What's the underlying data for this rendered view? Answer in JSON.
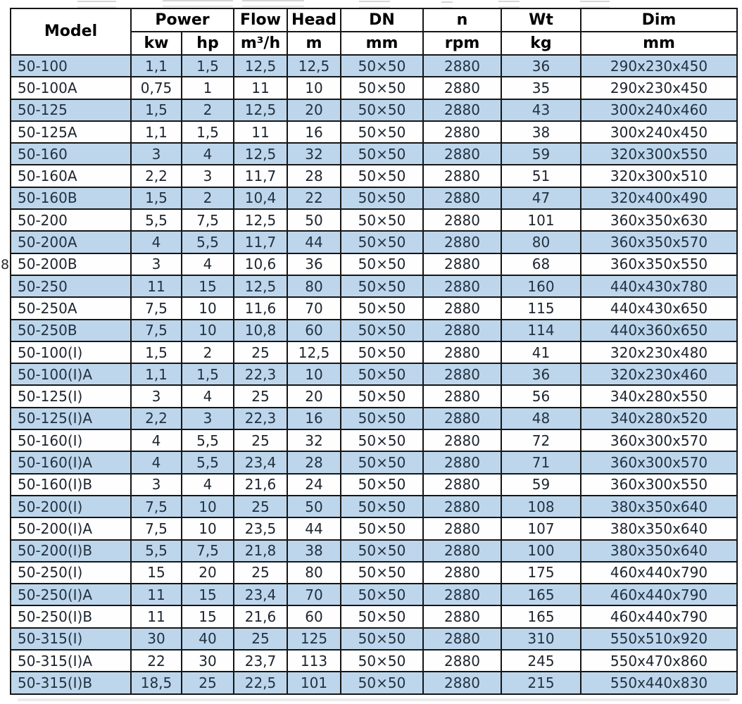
{
  "page": {
    "margin_note": "8"
  },
  "table": {
    "header": {
      "model_label": "Model",
      "groups": [
        {
          "label": "Power",
          "units": [
            "kw",
            "hp"
          ]
        },
        {
          "label": "Flow",
          "units": [
            "m³/h"
          ]
        },
        {
          "label": "Head",
          "units": [
            "m"
          ]
        },
        {
          "label": "DN",
          "units": [
            "mm"
          ]
        },
        {
          "label": "n",
          "units": [
            "rpm"
          ]
        },
        {
          "label": "Wt",
          "units": [
            "kg"
          ]
        },
        {
          "label": "Dim",
          "units": [
            "mm"
          ]
        }
      ]
    },
    "rows": [
      {
        "model": "50-100",
        "kw": "1,1",
        "hp": "1,5",
        "flow": "12,5",
        "head": "12,5",
        "dn": "50×50",
        "rpm": "2880",
        "wt": "36",
        "dim": "290x230x450"
      },
      {
        "model": "50-100A",
        "kw": "0,75",
        "hp": "1",
        "flow": "11",
        "head": "10",
        "dn": "50×50",
        "rpm": "2880",
        "wt": "35",
        "dim": "290x230x450"
      },
      {
        "model": "50-125",
        "kw": "1,5",
        "hp": "2",
        "flow": "12,5",
        "head": "20",
        "dn": "50×50",
        "rpm": "2880",
        "wt": "43",
        "dim": "300x240x460"
      },
      {
        "model": "50-125A",
        "kw": "1,1",
        "hp": "1,5",
        "flow": "11",
        "head": "16",
        "dn": "50×50",
        "rpm": "2880",
        "wt": "38",
        "dim": "300x240x450"
      },
      {
        "model": "50-160",
        "kw": "3",
        "hp": "4",
        "flow": "12,5",
        "head": "32",
        "dn": "50×50",
        "rpm": "2880",
        "wt": "59",
        "dim": "320x300x550"
      },
      {
        "model": "50-160A",
        "kw": "2,2",
        "hp": "3",
        "flow": "11,7",
        "head": "28",
        "dn": "50×50",
        "rpm": "2880",
        "wt": "51",
        "dim": "320x300x510"
      },
      {
        "model": "50-160B",
        "kw": "1,5",
        "hp": "2",
        "flow": "10,4",
        "head": "22",
        "dn": "50×50",
        "rpm": "2880",
        "wt": "47",
        "dim": "320x400x490"
      },
      {
        "model": "50-200",
        "kw": "5,5",
        "hp": "7,5",
        "flow": "12,5",
        "head": "50",
        "dn": "50×50",
        "rpm": "2880",
        "wt": "101",
        "dim": "360x350x630"
      },
      {
        "model": "50-200A",
        "kw": "4",
        "hp": "5,5",
        "flow": "11,7",
        "head": "44",
        "dn": "50×50",
        "rpm": "2880",
        "wt": "80",
        "dim": "360x350x570"
      },
      {
        "model": "50-200B",
        "kw": "3",
        "hp": "4",
        "flow": "10,6",
        "head": "36",
        "dn": "50×50",
        "rpm": "2880",
        "wt": "68",
        "dim": "360x350x550"
      },
      {
        "model": "50-250",
        "kw": "11",
        "hp": "15",
        "flow": "12,5",
        "head": "80",
        "dn": "50×50",
        "rpm": "2880",
        "wt": "160",
        "dim": "440x430x780"
      },
      {
        "model": "50-250A",
        "kw": "7,5",
        "hp": "10",
        "flow": "11,6",
        "head": "70",
        "dn": "50×50",
        "rpm": "2880",
        "wt": "115",
        "dim": "440x430x650"
      },
      {
        "model": "50-250B",
        "kw": "7,5",
        "hp": "10",
        "flow": "10,8",
        "head": "60",
        "dn": "50×50",
        "rpm": "2880",
        "wt": "114",
        "dim": "440x360x650"
      },
      {
        "model": "50-100(I)",
        "kw": "1,5",
        "hp": "2",
        "flow": "25",
        "head": "12,5",
        "dn": "50×50",
        "rpm": "2880",
        "wt": "41",
        "dim": "320x230x480"
      },
      {
        "model": "50-100(I)A",
        "kw": "1,1",
        "hp": "1,5",
        "flow": "22,3",
        "head": "10",
        "dn": "50×50",
        "rpm": "2880",
        "wt": "36",
        "dim": "320x230x460"
      },
      {
        "model": "50-125(I)",
        "kw": "3",
        "hp": "4",
        "flow": "25",
        "head": "20",
        "dn": "50×50",
        "rpm": "2880",
        "wt": "56",
        "dim": "340x280x550"
      },
      {
        "model": "50-125(I)A",
        "kw": "2,2",
        "hp": "3",
        "flow": "22,3",
        "head": "16",
        "dn": "50×50",
        "rpm": "2880",
        "wt": "48",
        "dim": "340x280x520"
      },
      {
        "model": "50-160(I)",
        "kw": "4",
        "hp": "5,5",
        "flow": "25",
        "head": "32",
        "dn": "50×50",
        "rpm": "2880",
        "wt": "72",
        "dim": "360x300x570"
      },
      {
        "model": "50-160(I)A",
        "kw": "4",
        "hp": "5,5",
        "flow": "23,4",
        "head": "28",
        "dn": "50×50",
        "rpm": "2880",
        "wt": "71",
        "dim": "360x300x570"
      },
      {
        "model": "50-160(I)B",
        "kw": "3",
        "hp": "4",
        "flow": "21,6",
        "head": "24",
        "dn": "50×50",
        "rpm": "2880",
        "wt": "59",
        "dim": "360x300x550"
      },
      {
        "model": "50-200(I)",
        "kw": "7,5",
        "hp": "10",
        "flow": "25",
        "head": "50",
        "dn": "50×50",
        "rpm": "2880",
        "wt": "108",
        "dim": "380x350x640"
      },
      {
        "model": "50-200(I)A",
        "kw": "7,5",
        "hp": "10",
        "flow": "23,5",
        "head": "44",
        "dn": "50×50",
        "rpm": "2880",
        "wt": "107",
        "dim": "380x350x640"
      },
      {
        "model": "50-200(I)B",
        "kw": "5,5",
        "hp": "7,5",
        "flow": "21,8",
        "head": "38",
        "dn": "50×50",
        "rpm": "2880",
        "wt": "100",
        "dim": "380x350x640"
      },
      {
        "model": "50-250(I)",
        "kw": "15",
        "hp": "20",
        "flow": "25",
        "head": "80",
        "dn": "50×50",
        "rpm": "2880",
        "wt": "175",
        "dim": "460x440x790"
      },
      {
        "model": "50-250(I)A",
        "kw": "11",
        "hp": "15",
        "flow": "23,4",
        "head": "70",
        "dn": "50×50",
        "rpm": "2880",
        "wt": "165",
        "dim": "460x440x790"
      },
      {
        "model": "50-250(I)B",
        "kw": "11",
        "hp": "15",
        "flow": "21,6",
        "head": "60",
        "dn": "50×50",
        "rpm": "2880",
        "wt": "165",
        "dim": "460x440x790"
      },
      {
        "model": "50-315(I)",
        "kw": "30",
        "hp": "40",
        "flow": "25",
        "head": "125",
        "dn": "50×50",
        "rpm": "2880",
        "wt": "310",
        "dim": "550x510x920"
      },
      {
        "model": "50-315(I)A",
        "kw": "22",
        "hp": "30",
        "flow": "23,7",
        "head": "113",
        "dn": "50×50",
        "rpm": "2880",
        "wt": "245",
        "dim": "550x470x860"
      },
      {
        "model": "50-315(I)B",
        "kw": "18,5",
        "hp": "25",
        "flow": "22,5",
        "head": "101",
        "dn": "50×50",
        "rpm": "2880",
        "wt": "215",
        "dim": "550x440x830"
      }
    ],
    "colors": {
      "row_blue": "#bdd6ec",
      "row_white": "#fefefe",
      "border": "#161616",
      "data_text": "#22313f",
      "header_text": "#000000"
    }
  }
}
